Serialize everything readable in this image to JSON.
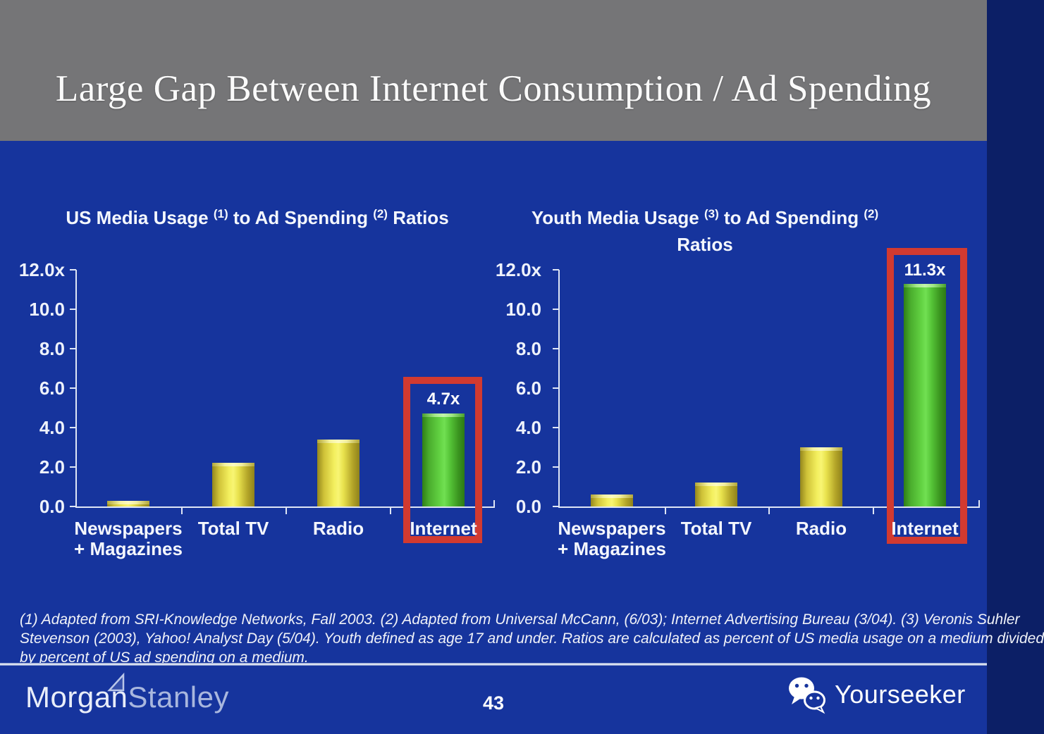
{
  "slide": {
    "title": "Large Gap Between Internet Consumption / Ad Spending",
    "page_number": "43",
    "footnote_lines": [
      "(1) Adapted from SRI-Knowledge Networks, Fall 2003.  (2) Adapted from Universal McCann, (6/03); Internet Advertising Bureau (3/04). (3) Veronis Suhler",
      "Stevenson (2003), Yahoo! Analyst Day (5/04).  Youth defined as age 17 and under.  Ratios are calculated as percent of US media usage on a medium divided",
      "by percent of US ad spending on a medium."
    ],
    "brand": {
      "part1": "Morgan",
      "part2": "Stanley"
    },
    "watermark_label": "Yourseeker"
  },
  "colors": {
    "background": "#16349D",
    "header_gray": "#757577",
    "bar_yellow": "#F2EF5C",
    "bar_green": "#5FCE45",
    "highlight_box_red": "#D23A30",
    "text_white": "#FFFFFF"
  },
  "chart_data": [
    {
      "type": "bar",
      "title_text": "US Media Usage (1) to Ad Spending (2) Ratios",
      "title_lines_rich": [
        [
          {
            "text": "US Media Usage "
          },
          {
            "sup": "(1)"
          },
          {
            "text": " to Ad Spending "
          },
          {
            "sup": "(2)"
          },
          {
            "text": " Ratios"
          }
        ]
      ],
      "categories": [
        "Newspapers + Magazines",
        "Total TV",
        "Radio",
        "Internet"
      ],
      "category_lines": [
        [
          "Newspapers",
          "+ Magazines"
        ],
        [
          "Total TV"
        ],
        [
          "Radio"
        ],
        [
          "Internet"
        ]
      ],
      "values": [
        0.3,
        2.2,
        3.4,
        4.7
      ],
      "bar_colors": [
        "yellow",
        "yellow",
        "yellow",
        "green"
      ],
      "y_ticks": [
        "12.0x",
        "10.0",
        "8.0",
        "6.0",
        "4.0",
        "2.0",
        "0.0"
      ],
      "ylim": [
        0,
        12
      ],
      "grid": false,
      "highlight": {
        "index": 3,
        "value_label": "4.7x",
        "boxed": true
      }
    },
    {
      "type": "bar",
      "title_text": "Youth Media Usage (3) to Ad Spending (2) Ratios",
      "title_lines_rich": [
        [
          {
            "text": "Youth Media Usage "
          },
          {
            "sup": "(3)"
          },
          {
            "text": " to Ad Spending "
          },
          {
            "sup": "(2)"
          }
        ],
        [
          {
            "text": "Ratios"
          }
        ]
      ],
      "categories": [
        "Newspapers + Magazines",
        "Total TV",
        "Radio",
        "Internet"
      ],
      "category_lines": [
        [
          "Newspapers",
          "+ Magazines"
        ],
        [
          "Total TV"
        ],
        [
          "Radio"
        ],
        [
          "Internet"
        ]
      ],
      "values": [
        0.6,
        1.2,
        3.0,
        11.3
      ],
      "bar_colors": [
        "yellow",
        "yellow",
        "yellow",
        "green"
      ],
      "y_ticks": [
        "12.0x",
        "10.0",
        "8.0",
        "6.0",
        "4.0",
        "2.0",
        "0.0"
      ],
      "ylim": [
        0,
        12
      ],
      "grid": false,
      "highlight": {
        "index": 3,
        "value_label": "11.3x",
        "boxed": true
      }
    }
  ]
}
